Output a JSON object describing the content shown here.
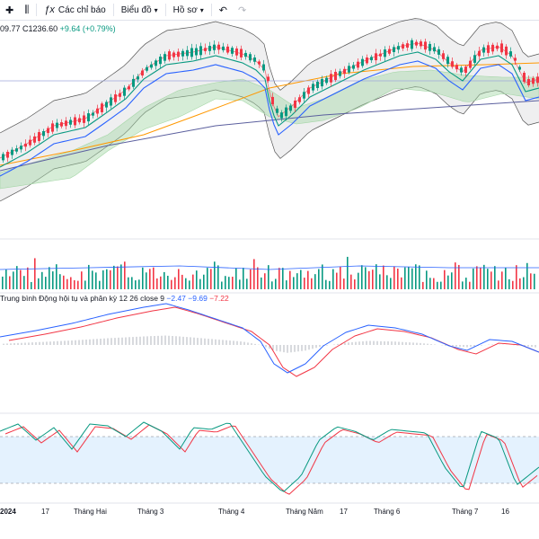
{
  "toolbar": {
    "indicators_label": "Các chỉ báo",
    "chart_type_label": "Biểu đồ",
    "profile_label": "Hồ sơ"
  },
  "ohlc": {
    "partial_low": "09.77",
    "close_label": "C",
    "close": "1236.60",
    "change": "+9.64 (+0.79%)"
  },
  "macd": {
    "title": "Trung bình Động hội tụ và phân kỳ 12 26 close 9",
    "histogram": "−2.47",
    "macd": "−9.69",
    "signal": "−7.22"
  },
  "xaxis": {
    "labels": [
      "2024",
      "17",
      "Tháng Hai",
      "Tháng 3",
      "Tháng 4",
      "Tháng Năm",
      "17",
      "Tháng 6",
      "Tháng 7",
      "16"
    ]
  },
  "colors": {
    "up": "#089981",
    "down": "#f23645",
    "blue": "#2962ff",
    "orange": "#ff9800",
    "teal": "#089981",
    "cloud": "#a5d6a7"
  }
}
